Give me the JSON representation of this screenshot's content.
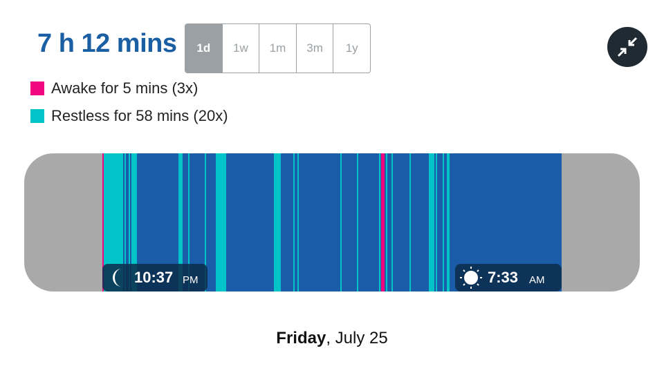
{
  "summary": {
    "duration": "7 h 12 mins"
  },
  "tabs": [
    "1d",
    "1w",
    "1m",
    "3m",
    "1y"
  ],
  "legend": [
    {
      "label": "Awake for 5 mins (3x)",
      "color": "#f0077f"
    },
    {
      "label": "Restless for 58 mins (20x)",
      "color": "#00c4c8"
    }
  ],
  "sleep_bar": {
    "start": {
      "time": "10:37",
      "period": "PM"
    },
    "end": {
      "time": "7:33",
      "period": "AM"
    }
  },
  "date": {
    "weekday": "Friday",
    "rest": ", July 25"
  }
}
